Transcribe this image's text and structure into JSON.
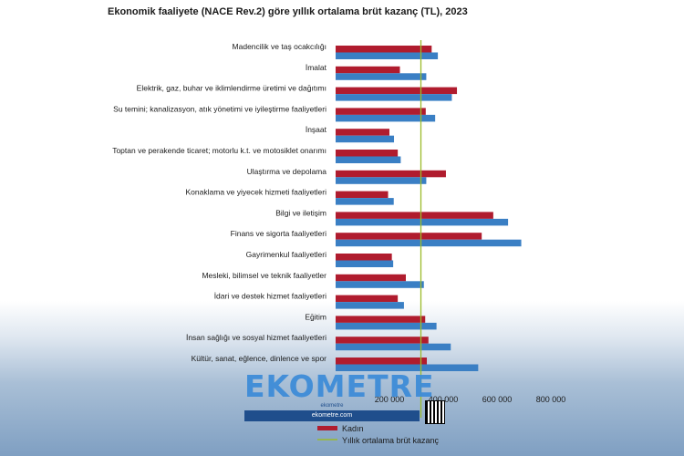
{
  "chart_data": {
    "type": "bar",
    "orientation": "horizontal",
    "title": "Ekonomik faaliyete (NACE Rev.2) göre yıllık ortalama brüt kazanç (TL), 2023",
    "categories": [
      "Madencilik ve taş ocakcılığı",
      "İmalat",
      "Elektrik, gaz, buhar ve iklimlendirme üretimi ve dağıtımı",
      "Su temini; kanalizasyon, atık yönetimi ve iyileştirme faaliyetleri",
      "İnşaat",
      "Toptan ve perakende ticaret; motorlu k.t. ve motosiklet onarımı",
      "Ulaştırma ve depolama",
      "Konaklama ve yiyecek hizmeti faaliyetleri",
      "Bilgi ve iletişim",
      "Finans ve sigorta faaliyetleri",
      "Gayrimenkul faaliyetleri",
      "Mesleki, bilimsel ve teknik faaliyetler",
      "İdari ve destek hizmet faaliyetleri",
      "Eğitim",
      "İnsan sağlığı ve sosyal hizmet faaliyetleri",
      "Kültür, sanat, eğlence, dinlence ve spor"
    ],
    "series": [
      {
        "name": "Kadın",
        "color": "#b01c2e",
        "values": [
          357000,
          239000,
          451000,
          335000,
          200000,
          231000,
          410000,
          195000,
          586000,
          543000,
          209000,
          261000,
          231000,
          333000,
          345000,
          339000
        ]
      },
      {
        "name": "",
        "color": "#3a7fc4",
        "values": [
          380000,
          337000,
          432000,
          370000,
          217000,
          242000,
          337000,
          216000,
          641000,
          690000,
          214000,
          328000,
          254000,
          375000,
          428000,
          530000
        ]
      }
    ],
    "reference_line": {
      "name": "Yıllık ortalama brüt kazanç",
      "value": 317000,
      "color": "#9bbb2a"
    },
    "xlim": [
      0,
      800000
    ],
    "x_ticks": [
      "800 000",
      "600 000",
      "400 000",
      "200 000"
    ],
    "x_tick_values": [
      800000,
      600000,
      400000,
      200000
    ],
    "legend_position": "bottom"
  },
  "watermark": {
    "brand": "EKOMETRE",
    "social": "ekometre",
    "url": "ekometre.com"
  }
}
